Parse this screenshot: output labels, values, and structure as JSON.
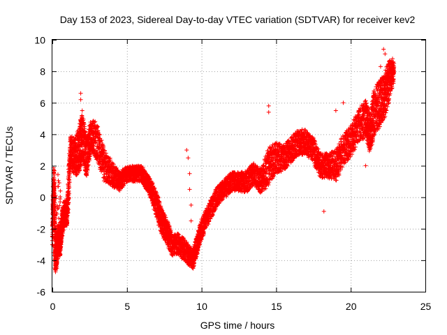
{
  "chart_data": {
    "type": "scatter",
    "title": "Day 153 of 2023, Sidereal Day-to-day VTEC variation (SDTVAR) for receiver kev2",
    "xlabel": "GPS time / hours",
    "ylabel": "SDTVAR / TECUs",
    "xlim": [
      0,
      25
    ],
    "ylim": [
      -6,
      10
    ],
    "xticks": [
      0,
      5,
      10,
      15,
      20,
      25
    ],
    "xtick_labels": [
      "0",
      "5",
      "10",
      "15",
      "20",
      "25"
    ],
    "yticks": [
      -6,
      -4,
      -2,
      0,
      2,
      4,
      6,
      8,
      10
    ],
    "ytick_labels": [
      "-6",
      "-4",
      "-2",
      "0",
      "2",
      "4",
      "6",
      "8",
      "10"
    ],
    "grid": true,
    "marker": "+",
    "series": [
      {
        "name": "SDTVAR",
        "color": "#ff0000",
        "x": [
          0.0,
          0.1,
          0.2,
          0.3,
          0.4,
          0.5,
          0.6,
          0.8,
          1.0,
          1.2,
          1.5,
          1.8,
          2.0,
          2.3,
          2.6,
          3.0,
          3.5,
          4.0,
          4.5,
          5.0,
          5.5,
          6.0,
          6.3,
          6.6,
          7.0,
          7.3,
          7.6,
          8.0,
          8.5,
          9.0,
          9.4,
          9.7,
          10.0,
          10.5,
          11.0,
          11.5,
          12.0,
          12.5,
          13.0,
          13.5,
          14.0,
          14.5,
          15.0,
          15.5,
          16.0,
          16.5,
          17.0,
          17.5,
          18.0,
          18.5,
          19.0,
          19.5,
          20.0,
          20.5,
          21.0,
          21.3,
          21.6,
          22.0,
          22.3,
          22.6,
          22.9
        ],
        "y": [
          -2.5,
          1.0,
          -4.0,
          -3.5,
          -2.5,
          -3.0,
          -2.0,
          -1.0,
          -1.0,
          3.0,
          2.5,
          3.0,
          4.0,
          2.5,
          4.0,
          3.5,
          2.0,
          1.5,
          1.0,
          1.5,
          1.5,
          1.5,
          1.0,
          0.5,
          -0.5,
          -1.5,
          -2.0,
          -3.0,
          -3.0,
          -3.5,
          -4.0,
          -3.0,
          -2.0,
          -1.0,
          0.0,
          0.5,
          1.0,
          1.0,
          1.0,
          1.5,
          1.0,
          2.0,
          2.5,
          2.5,
          3.0,
          3.5,
          3.5,
          3.0,
          2.0,
          2.0,
          2.0,
          3.0,
          3.5,
          4.5,
          5.0,
          4.0,
          5.5,
          6.0,
          6.5,
          7.5,
          8.0
        ],
        "spread": [
          1.0,
          1.0,
          0.8,
          0.8,
          0.8,
          0.8,
          0.8,
          0.8,
          0.8,
          1.0,
          1.2,
          1.5,
          1.5,
          1.2,
          1.0,
          1.2,
          1.0,
          0.8,
          0.6,
          0.5,
          0.5,
          0.5,
          0.5,
          0.6,
          0.8,
          0.8,
          0.8,
          0.7,
          0.7,
          0.7,
          0.6,
          0.6,
          0.7,
          0.6,
          0.6,
          0.6,
          0.6,
          0.6,
          0.7,
          0.7,
          0.8,
          1.2,
          1.0,
          0.8,
          0.8,
          0.8,
          0.8,
          0.8,
          0.8,
          0.8,
          1.0,
          1.0,
          1.0,
          1.0,
          1.2,
          1.2,
          1.5,
          1.5,
          1.5,
          1.2,
          0.6
        ],
        "outliers": [
          {
            "x": 1.9,
            "y": 6.6
          },
          {
            "x": 1.9,
            "y": 6.2
          },
          {
            "x": 2.0,
            "y": 5.5
          },
          {
            "x": 9.0,
            "y": 3.0
          },
          {
            "x": 9.1,
            "y": 2.5
          },
          {
            "x": 9.2,
            "y": 1.5
          },
          {
            "x": 9.2,
            "y": 0.5
          },
          {
            "x": 9.3,
            "y": -0.5
          },
          {
            "x": 9.3,
            "y": -1.5
          },
          {
            "x": 14.5,
            "y": 5.8
          },
          {
            "x": 14.5,
            "y": 5.4
          },
          {
            "x": 18.2,
            "y": -0.9
          },
          {
            "x": 19.0,
            "y": 5.5
          },
          {
            "x": 19.5,
            "y": 6.0
          },
          {
            "x": 22.2,
            "y": 9.4
          },
          {
            "x": 22.3,
            "y": 9.1
          },
          {
            "x": 22.0,
            "y": 8.3
          },
          {
            "x": 22.8,
            "y": 8.8
          },
          {
            "x": 22.9,
            "y": 8.5
          },
          {
            "x": 21.0,
            "y": 2.0
          },
          {
            "x": 0.2,
            "y": -4.6
          },
          {
            "x": 0.3,
            "y": -4.5
          }
        ]
      }
    ]
  }
}
